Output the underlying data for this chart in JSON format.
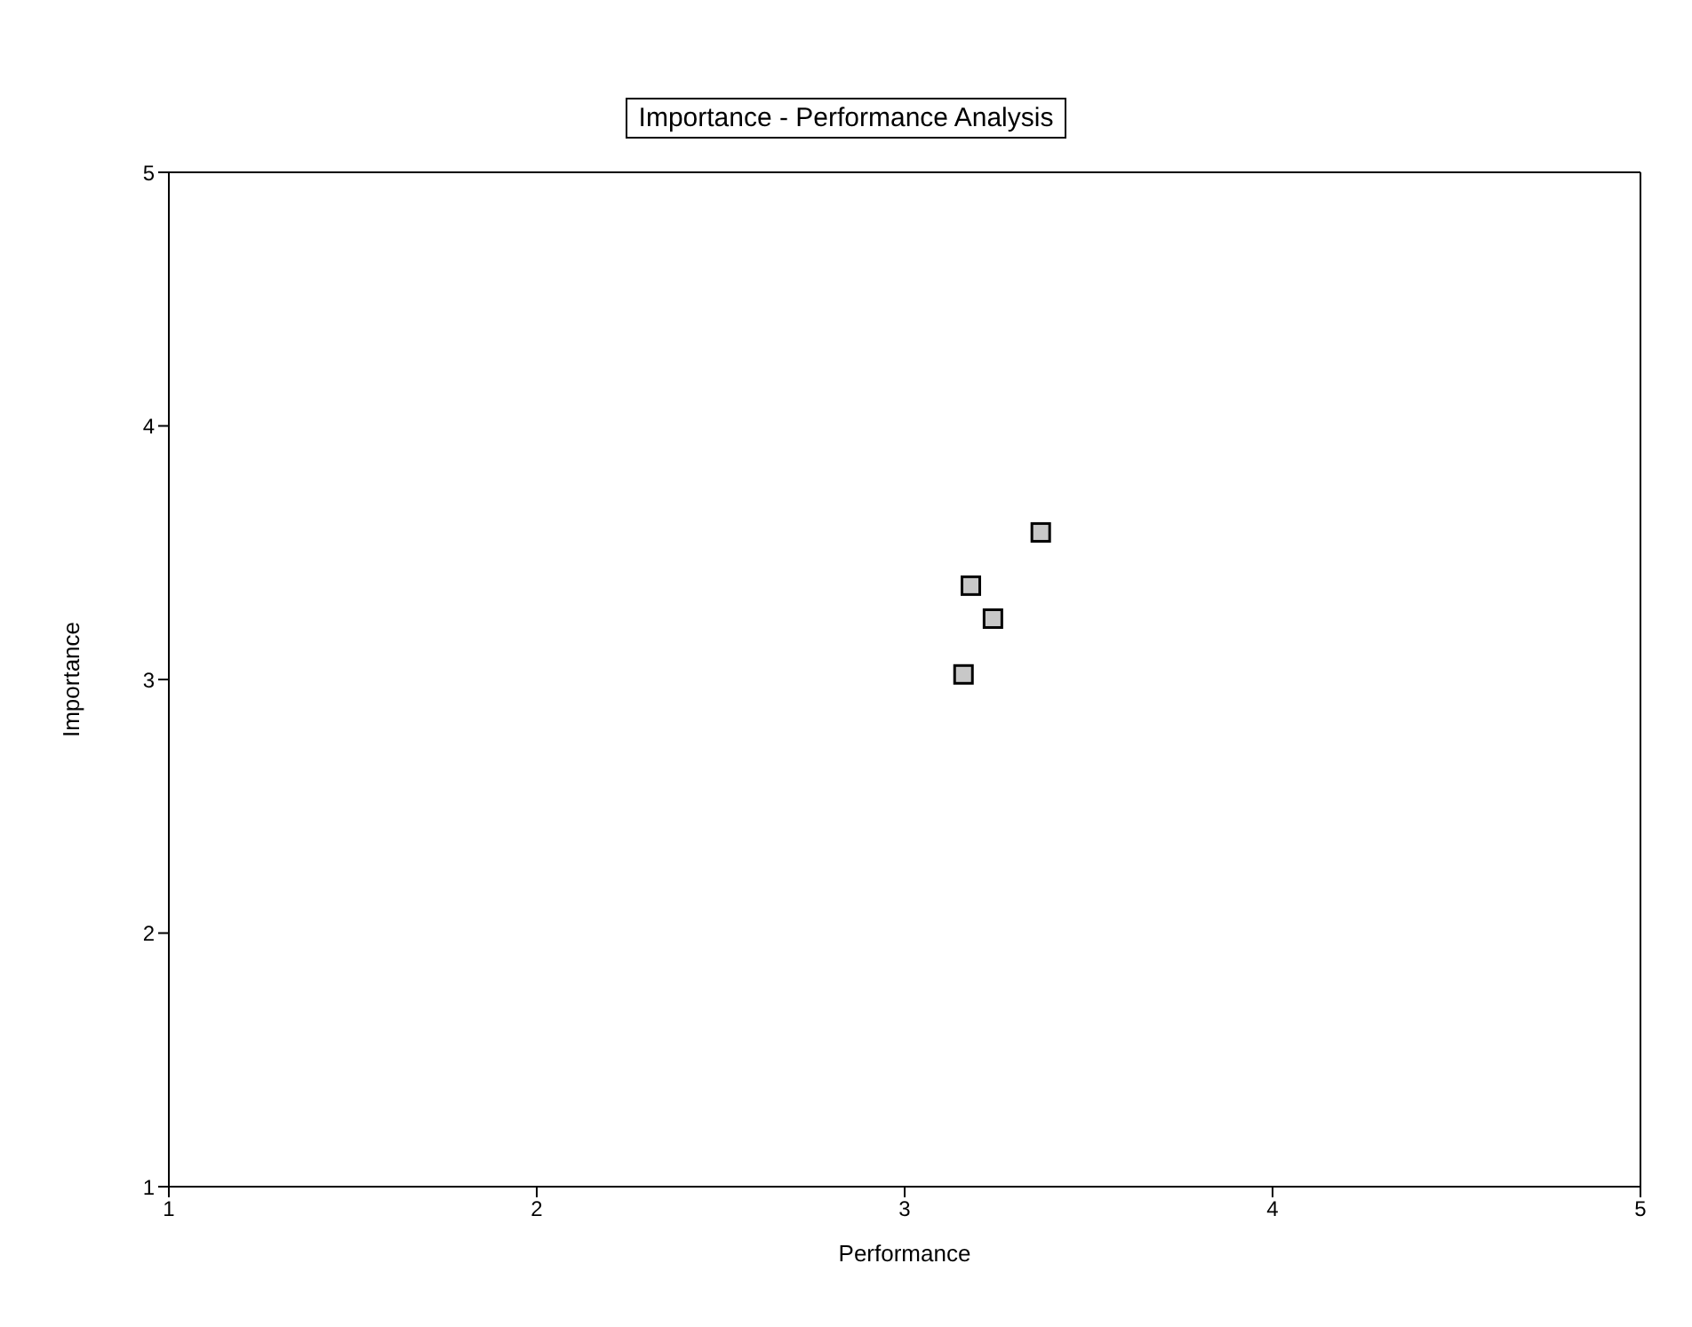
{
  "chart_data": {
    "type": "scatter",
    "title": "Importance - Performance Analysis",
    "xlabel": "Performance",
    "ylabel": "Importance",
    "x": [
      3.37,
      3.18,
      3.24,
      3.16
    ],
    "values": [
      3.58,
      3.37,
      3.24,
      3.02
    ],
    "color": "#000000",
    "marker": "square",
    "grid": false,
    "xlim": [
      1,
      5
    ],
    "xticks": [
      1,
      2,
      3,
      4,
      5
    ],
    "ylim": [
      1,
      5
    ],
    "yticks": [
      1,
      2,
      3,
      4,
      5
    ]
  }
}
